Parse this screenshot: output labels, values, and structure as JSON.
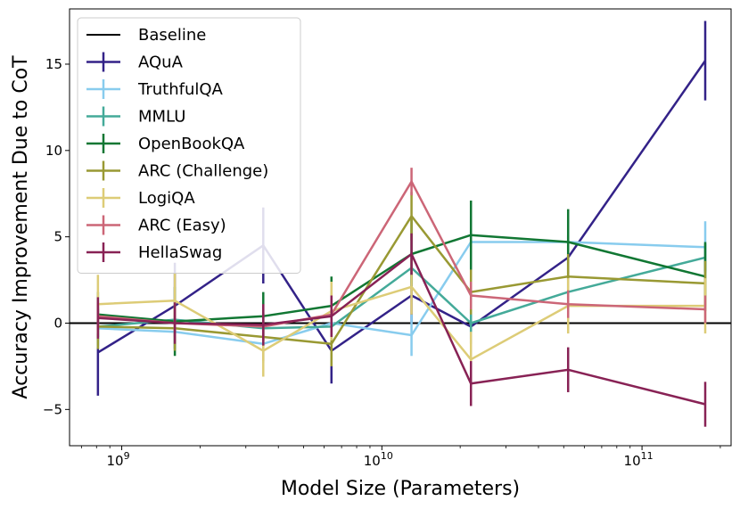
{
  "chart_data": {
    "type": "line",
    "title": "",
    "xlabel": "Model Size (Parameters)",
    "ylabel": "Accuracy Improvement Due to CoT",
    "xscale": "log",
    "xlim": [
      630000000.0,
      220000000000.0
    ],
    "ylim": [
      -7.1,
      18.2
    ],
    "x": [
      810000000.0,
      1600000000.0,
      3500000000.0,
      6400000000.0,
      13000000000.0,
      22000000000.0,
      52000000000.0,
      175000000000.0
    ],
    "x_ticks": [
      {
        "value": 1000000000.0,
        "base": "10",
        "exp": "9"
      },
      {
        "value": 10000000000.0,
        "base": "10",
        "exp": "10"
      },
      {
        "value": 100000000000.0,
        "base": "10",
        "exp": "11"
      }
    ],
    "y_ticks": [
      {
        "value": -5,
        "label": "−5"
      },
      {
        "value": 0,
        "label": "0"
      },
      {
        "value": 5,
        "label": "5"
      },
      {
        "value": 10,
        "label": "10"
      },
      {
        "value": 15,
        "label": "15"
      }
    ],
    "baseline": {
      "name": "Baseline",
      "value": 0,
      "color": "#000000"
    },
    "legend_position": "top-left",
    "series": [
      {
        "name": "AQuA",
        "color": "#332288",
        "values": [
          -1.7,
          1.0,
          4.5,
          -1.6,
          1.6,
          -0.2,
          3.8,
          15.2
        ],
        "errors": [
          2.5,
          2.5,
          2.2,
          1.9,
          1.6,
          1.0,
          1.3,
          2.3
        ]
      },
      {
        "name": "TruthfulQA",
        "color": "#88CCEE",
        "values": [
          -0.3,
          -0.5,
          -1.2,
          0.0,
          -0.7,
          4.7,
          4.7,
          4.4
        ],
        "errors": [
          1.1,
          1.0,
          1.1,
          0.9,
          1.2,
          1.5,
          1.3,
          1.5
        ]
      },
      {
        "name": "MMLU",
        "color": "#44AA99",
        "values": [
          -0.2,
          0.2,
          -0.3,
          -0.2,
          3.2,
          0.0,
          1.8,
          3.8
        ],
        "errors": [
          1.1,
          1.0,
          0.8,
          0.8,
          0.9,
          0.9,
          0.8,
          0.8
        ]
      },
      {
        "name": "OpenBookQA",
        "color": "#117733",
        "values": [
          0.5,
          0.1,
          0.4,
          1.0,
          4.0,
          5.1,
          4.7,
          2.7
        ],
        "errors": [
          1.3,
          2.0,
          1.4,
          1.7,
          2.0,
          2.0,
          1.9,
          2.0
        ]
      },
      {
        "name": "ARC (Challenge)",
        "color": "#999933",
        "values": [
          -0.2,
          -0.3,
          -0.8,
          -1.2,
          6.2,
          1.8,
          2.7,
          2.3
        ],
        "errors": [
          1.3,
          1.3,
          1.4,
          1.3,
          1.4,
          1.3,
          1.3,
          1.3
        ]
      },
      {
        "name": "LogiQA",
        "color": "#DDCC77",
        "values": [
          1.1,
          1.3,
          -1.6,
          0.7,
          2.1,
          -2.1,
          1.0,
          1.0
        ],
        "errors": [
          1.7,
          1.6,
          1.5,
          1.7,
          1.6,
          1.6,
          1.6,
          1.6
        ]
      },
      {
        "name": "ARC (Easy)",
        "color": "#CC6677",
        "values": [
          0.4,
          0.0,
          -0.2,
          0.5,
          8.2,
          1.6,
          1.1,
          0.8
        ],
        "errors": [
          0.8,
          0.8,
          0.8,
          0.8,
          0.8,
          0.8,
          0.8,
          0.8
        ]
      },
      {
        "name": "HellaSwag",
        "color": "#882255",
        "values": [
          0.3,
          0.0,
          -0.1,
          0.4,
          4.0,
          -3.5,
          -2.7,
          -4.7
        ],
        "errors": [
          1.2,
          1.2,
          1.2,
          1.2,
          1.2,
          1.3,
          1.3,
          1.3
        ]
      }
    ]
  }
}
